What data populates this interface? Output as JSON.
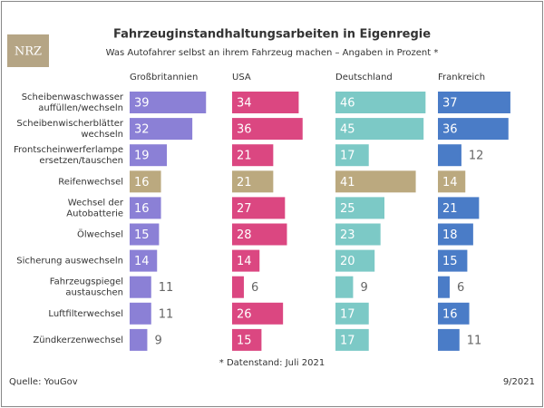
{
  "chart_data": {
    "type": "bar",
    "title": "Fahrzeuginstandhaltungsarbeiten in Eigenregie",
    "subtitle": "Was Autofahrer selbst an ihrem Fahrzeug machen – Angaben in Prozent *",
    "logo": "NRZ",
    "orientation": "horizontal",
    "categories": [
      "Scheibenwaschwasser\nauffüllen/wechseln",
      "Scheibenwischerblätter\nwechseln",
      "Frontscheinwerferlampe\nersetzen/tauschen",
      "Reifenwechsel",
      "Wechsel der\nAutobatterie",
      "Ölwechsel",
      "Sicherung auswechseln",
      "Fahrzeugspiegel\naustauschen",
      "Luftfilterwechsel",
      "Zündkerzenwechsel"
    ],
    "series": [
      {
        "name": "Großbritannien",
        "color": "#8b80d6",
        "values": [
          39,
          32,
          19,
          16,
          16,
          15,
          14,
          11,
          11,
          9
        ]
      },
      {
        "name": "USA",
        "color": "#db4781",
        "values": [
          34,
          36,
          21,
          21,
          27,
          28,
          14,
          6,
          26,
          15
        ]
      },
      {
        "name": "Deutschland",
        "color": "#7cc9c6",
        "values": [
          46,
          45,
          17,
          41,
          25,
          23,
          20,
          9,
          17,
          17
        ]
      },
      {
        "name": "Frankreich",
        "color": "#4a7cc7",
        "values": [
          37,
          36,
          12,
          14,
          21,
          18,
          15,
          6,
          16,
          11
        ]
      }
    ],
    "highlight_category": "Reifenwechsel",
    "highlight_color": "#bba97f",
    "xlim": [
      0,
      50
    ],
    "footnote": "* Datenstand: Juli 2021",
    "source": "Quelle: YouGov",
    "date": "9/2021"
  }
}
